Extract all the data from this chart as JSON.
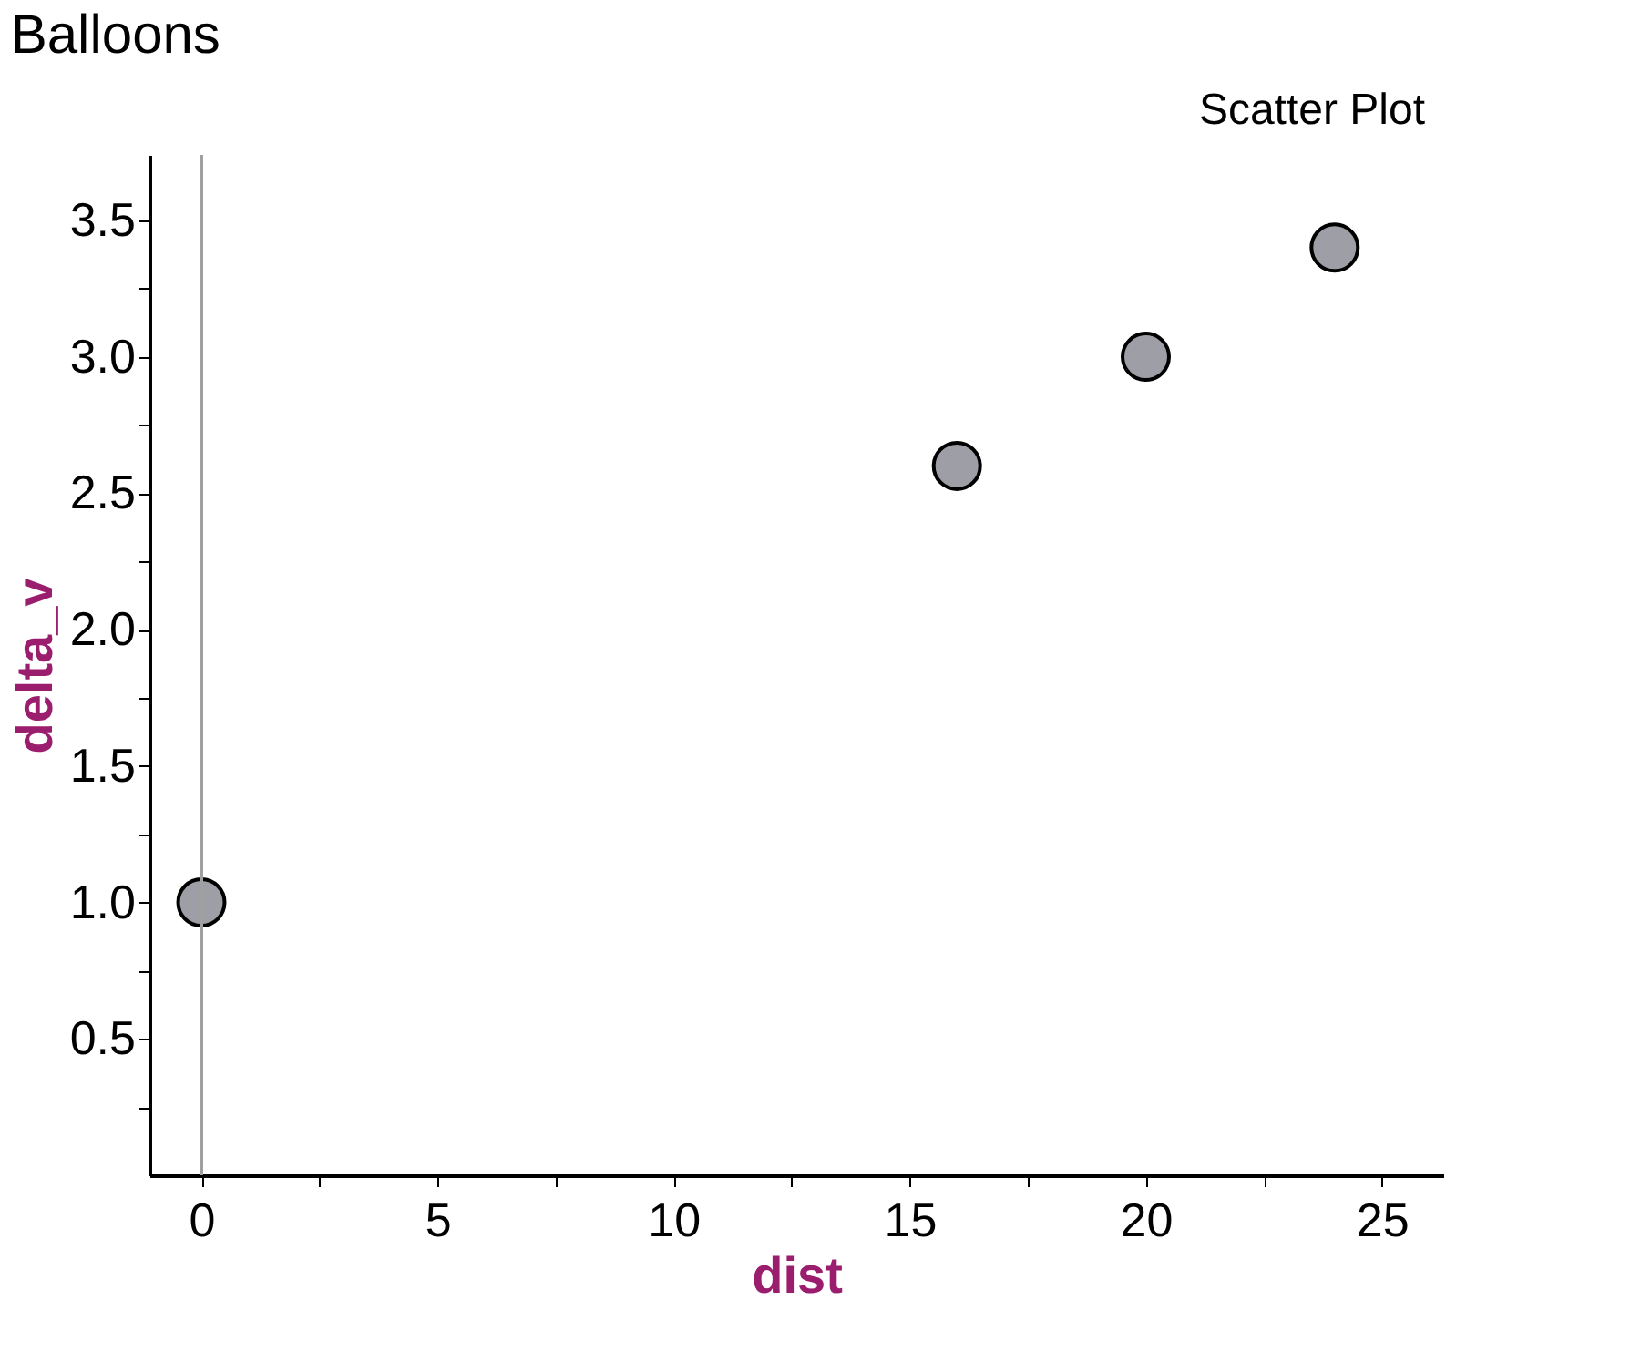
{
  "chart_data": {
    "type": "scatter",
    "title": "Balloons",
    "xlabel": "dist",
    "ylabel": "delta_v",
    "annotations": [
      "Scatter Plot"
    ],
    "x": [
      0,
      16,
      20,
      24
    ],
    "series": [
      {
        "color": "#9e9ea6",
        "values": [
          1.0,
          2.6,
          3.0,
          3.4
        ]
      }
    ],
    "xlim": [
      -1.1,
      26.3
    ],
    "ylim": [
      0,
      3.74
    ],
    "xticks": [
      0,
      {
        "value": 2.5,
        "label": null
      },
      5,
      {
        "value": 7.5,
        "label": null
      },
      10,
      {
        "value": 12.5,
        "label": null
      },
      15,
      {
        "value": 17.5,
        "label": null
      },
      20,
      {
        "value": 22.5,
        "label": null
      },
      25
    ],
    "yticks": [
      {
        "value": 0.25,
        "label": null
      },
      0.5,
      {
        "value": 0.75,
        "label": null
      },
      {
        "value": 1.0,
        "label": "1.0"
      },
      {
        "value": 1.25,
        "label": null
      },
      1.5,
      {
        "value": 1.75,
        "label": null
      },
      {
        "value": 2.0,
        "label": "2.0"
      },
      {
        "value": 2.25,
        "label": null
      },
      2.5,
      {
        "value": 2.75,
        "label": null
      },
      {
        "value": 3.0,
        "label": "3.0"
      },
      {
        "value": 3.25,
        "label": null
      },
      3.5
    ],
    "ref_lines": [
      {
        "axis": "x",
        "value": 0,
        "color": "#a0a0a0"
      }
    ],
    "marker": "circle",
    "grid": false
  }
}
